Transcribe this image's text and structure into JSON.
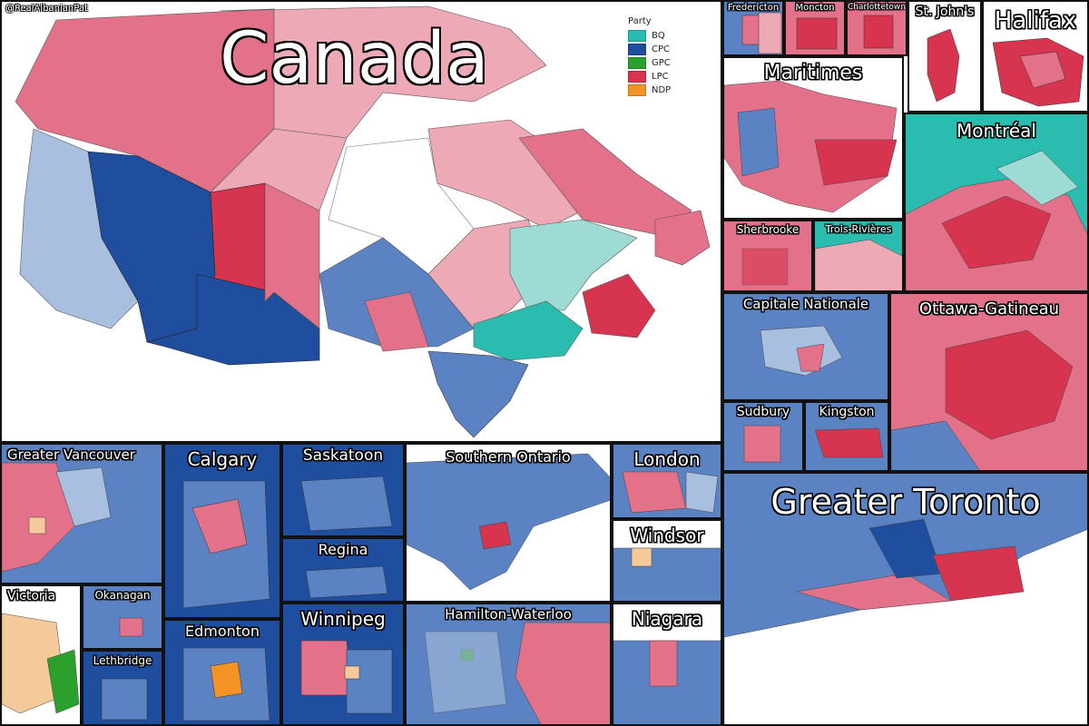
{
  "credit": "@RealAlbanianPat",
  "main_title": "Canada",
  "legend": {
    "title": "Party",
    "items": [
      {
        "label": "BQ",
        "color": "#2bbcb0"
      },
      {
        "label": "CPC",
        "color": "#1f4e9e"
      },
      {
        "label": "GPC",
        "color": "#2ca02c"
      },
      {
        "label": "LPC",
        "color": "#d6344f"
      },
      {
        "label": "NDP",
        "color": "#f39325"
      }
    ]
  },
  "colors": {
    "cpc_strong": "#1f4e9e",
    "cpc_mid": "#5b82c2",
    "cpc_light": "#a9bfdf",
    "lpc_strong": "#d6344f",
    "lpc_mid": "#e3718a",
    "lpc_light": "#eea9b6",
    "bq": "#2bbcb0",
    "bq_light": "#9fdbd5",
    "ndp": "#f39325",
    "ndp_light": "#f6c99a",
    "gpc": "#2ca02c"
  },
  "panels": {
    "fredericton": "Fredericton",
    "moncton": "Moncton",
    "charlottetown": "Charlottetown",
    "st_johns": "St. John's",
    "halifax": "Halifax",
    "maritimes": "Maritimes",
    "montreal": "Montréal",
    "sherbrooke": "Sherbrooke",
    "trois_rivieres": "Trois-Rivières",
    "capitale_nationale": "Capitale Nationale",
    "ottawa_gatineau": "Ottawa-Gatineau",
    "sudbury": "Sudbury",
    "kingston": "Kingston",
    "greater_vancouver": "Greater Vancouver",
    "calgary": "Calgary",
    "saskatoon": "Saskatoon",
    "regina": "Regina",
    "southern_ontario": "Southern Ontario",
    "london": "London",
    "windsor": "Windsor",
    "greater_toronto": "Greater Toronto",
    "victoria": "Victoria",
    "okanagan": "Okanagan",
    "lethbridge": "Lethbridge",
    "edmonton": "Edmonton",
    "winnipeg": "Winnipeg",
    "hamilton_waterloo": "Hamilton-Waterloo",
    "niagara": "Niagara"
  }
}
